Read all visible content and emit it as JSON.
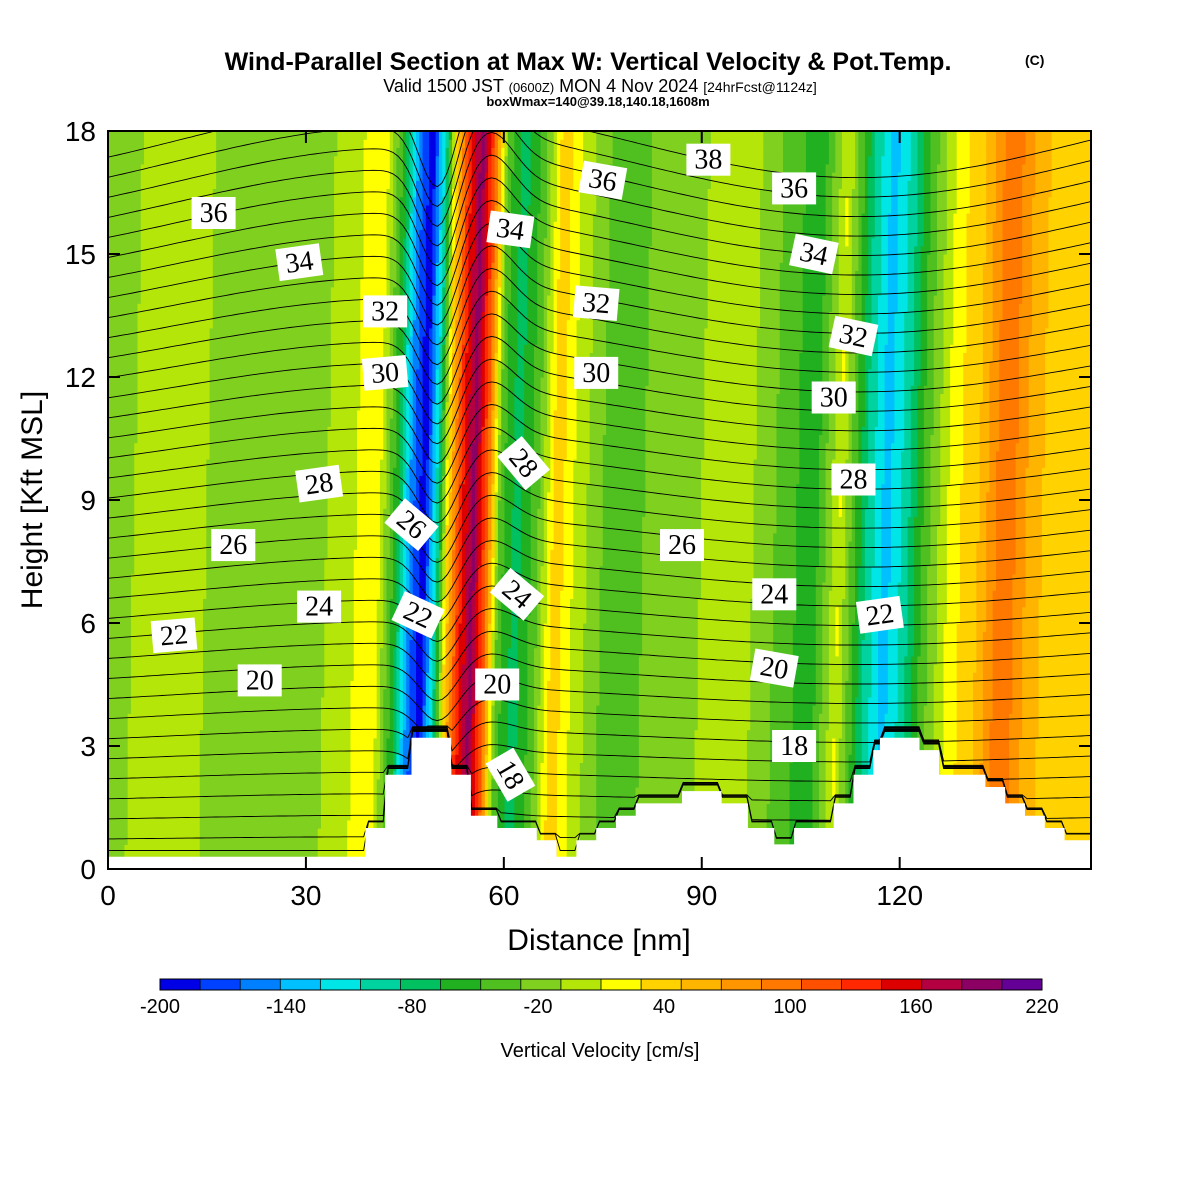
{
  "title": {
    "main": "Wind-Parallel Section at Max W: Vertical Velocity & Pot.Temp.",
    "copyright": "(C)",
    "valid_prefix": "Valid 1500 JST",
    "valid_utc": "(0600Z)",
    "valid_date": "MON 4 Nov 2024",
    "forecast": "[24hrFcst@1124z]",
    "box_info": "boxWmax=140@39.18,140.18,1608m"
  },
  "chart_data": {
    "type": "heatmap",
    "xlabel": "Distance [nm]",
    "ylabel": "Height [Kft MSL]",
    "xlim": [
      0,
      149
    ],
    "ylim": [
      0,
      18
    ],
    "xticks": [
      0,
      30,
      60,
      90,
      120
    ],
    "yticks": [
      0,
      3,
      6,
      9,
      12,
      15,
      18
    ],
    "colorbar": {
      "label": "Vertical Velocity [cm/s]",
      "levels": [
        -200,
        -180,
        -160,
        -140,
        -120,
        -100,
        -80,
        -60,
        -40,
        -20,
        0,
        20,
        40,
        60,
        80,
        100,
        120,
        140,
        160,
        180,
        200,
        220
      ],
      "tick_labels": [
        "-200",
        "-140",
        "-80",
        "-20",
        "40",
        "100",
        "160",
        "220"
      ],
      "colors": [
        "#0000e6",
        "#0040ff",
        "#0080ff",
        "#00c0ff",
        "#00e6e6",
        "#00d2a0",
        "#00c060",
        "#20b020",
        "#50c020",
        "#80d020",
        "#b4e60a",
        "#ffff00",
        "#ffd200",
        "#ffb400",
        "#ff9600",
        "#ff7800",
        "#ff5000",
        "#ff2800",
        "#dc0000",
        "#b40040",
        "#8c0064",
        "#640096"
      ]
    },
    "vertical_velocity_columns": [
      {
        "x": 0,
        "w": -10
      },
      {
        "x": 8,
        "w": 10
      },
      {
        "x": 15,
        "w": 0
      },
      {
        "x": 24,
        "w": -12
      },
      {
        "x": 32,
        "w": -6
      },
      {
        "x": 37,
        "w": 18
      },
      {
        "x": 41,
        "w": 30
      },
      {
        "x": 44,
        "w": -60
      },
      {
        "x": 46,
        "w": -150
      },
      {
        "x": 48,
        "w": -195
      },
      {
        "x": 50,
        "w": -90
      },
      {
        "x": 51.5,
        "w": 40
      },
      {
        "x": 53.5,
        "w": 150
      },
      {
        "x": 55.5,
        "w": 210
      },
      {
        "x": 57.5,
        "w": 120
      },
      {
        "x": 59.5,
        "w": -30
      },
      {
        "x": 62,
        "w": -70
      },
      {
        "x": 65,
        "w": -30
      },
      {
        "x": 68,
        "w": 55
      },
      {
        "x": 71,
        "w": 15
      },
      {
        "x": 75,
        "w": -20
      },
      {
        "x": 79,
        "w": -30
      },
      {
        "x": 84,
        "w": -8
      },
      {
        "x": 90,
        "w": 0
      },
      {
        "x": 96,
        "w": 12
      },
      {
        "x": 102,
        "w": -25
      },
      {
        "x": 107,
        "w": -55
      },
      {
        "x": 111,
        "w": 22
      },
      {
        "x": 115,
        "w": -80
      },
      {
        "x": 118,
        "w": -130
      },
      {
        "x": 121,
        "w": -90
      },
      {
        "x": 124,
        "w": -30
      },
      {
        "x": 128,
        "w": 30
      },
      {
        "x": 132,
        "w": 60
      },
      {
        "x": 136,
        "w": 120
      },
      {
        "x": 140,
        "w": 70
      },
      {
        "x": 145,
        "w": 40
      },
      {
        "x": 149,
        "w": 55
      }
    ],
    "terrain": [
      {
        "x": 0,
        "h": 0.3
      },
      {
        "x": 39,
        "h": 0.3
      },
      {
        "x": 39,
        "h": 1.0
      },
      {
        "x": 42,
        "h": 1.0
      },
      {
        "x": 42,
        "h": 2.3
      },
      {
        "x": 46,
        "h": 2.3
      },
      {
        "x": 46,
        "h": 3.2
      },
      {
        "x": 52,
        "h": 3.2
      },
      {
        "x": 52,
        "h": 2.3
      },
      {
        "x": 55,
        "h": 2.3
      },
      {
        "x": 55,
        "h": 1.3
      },
      {
        "x": 59,
        "h": 1.3
      },
      {
        "x": 59,
        "h": 1.0
      },
      {
        "x": 65,
        "h": 1.0
      },
      {
        "x": 65,
        "h": 0.7
      },
      {
        "x": 68,
        "h": 0.7
      },
      {
        "x": 68,
        "h": 0.3
      },
      {
        "x": 71,
        "h": 0.3
      },
      {
        "x": 71,
        "h": 0.7
      },
      {
        "x": 74,
        "h": 0.7
      },
      {
        "x": 74,
        "h": 1.0
      },
      {
        "x": 77,
        "h": 1.0
      },
      {
        "x": 77,
        "h": 1.3
      },
      {
        "x": 80,
        "h": 1.3
      },
      {
        "x": 80,
        "h": 1.6
      },
      {
        "x": 87,
        "h": 1.6
      },
      {
        "x": 87,
        "h": 1.9
      },
      {
        "x": 93,
        "h": 1.9
      },
      {
        "x": 93,
        "h": 1.6
      },
      {
        "x": 97,
        "h": 1.6
      },
      {
        "x": 97,
        "h": 1.0
      },
      {
        "x": 101,
        "h": 1.0
      },
      {
        "x": 101,
        "h": 0.6
      },
      {
        "x": 104,
        "h": 0.6
      },
      {
        "x": 104,
        "h": 1.0
      },
      {
        "x": 110,
        "h": 1.0
      },
      {
        "x": 110,
        "h": 1.6
      },
      {
        "x": 113,
        "h": 1.6
      },
      {
        "x": 113,
        "h": 2.3
      },
      {
        "x": 116,
        "h": 2.3
      },
      {
        "x": 116,
        "h": 2.9
      },
      {
        "x": 117,
        "h": 2.9
      },
      {
        "x": 117,
        "h": 3.2
      },
      {
        "x": 123,
        "h": 3.2
      },
      {
        "x": 123,
        "h": 2.9
      },
      {
        "x": 126,
        "h": 2.9
      },
      {
        "x": 126,
        "h": 2.3
      },
      {
        "x": 133,
        "h": 2.3
      },
      {
        "x": 133,
        "h": 2.0
      },
      {
        "x": 136,
        "h": 2.0
      },
      {
        "x": 136,
        "h": 1.6
      },
      {
        "x": 139,
        "h": 1.6
      },
      {
        "x": 139,
        "h": 1.3
      },
      {
        "x": 142,
        "h": 1.3
      },
      {
        "x": 142,
        "h": 1.0
      },
      {
        "x": 145,
        "h": 1.0
      },
      {
        "x": 145,
        "h": 0.7
      },
      {
        "x": 149,
        "h": 0.7
      }
    ],
    "potential_temperature_labels": [
      {
        "text": "36",
        "x": 16,
        "y": 16.0,
        "rot": 0
      },
      {
        "text": "34",
        "x": 29,
        "y": 14.8,
        "rot": -8
      },
      {
        "text": "32",
        "x": 42,
        "y": 13.6,
        "rot": 0
      },
      {
        "text": "30",
        "x": 42,
        "y": 12.1,
        "rot": -5
      },
      {
        "text": "28",
        "x": 32,
        "y": 9.4,
        "rot": -8
      },
      {
        "text": "26",
        "x": 19,
        "y": 7.9,
        "rot": 0
      },
      {
        "text": "24",
        "x": 32,
        "y": 6.4,
        "rot": 0
      },
      {
        "text": "22",
        "x": 10,
        "y": 5.7,
        "rot": -5
      },
      {
        "text": "20",
        "x": 23,
        "y": 4.6,
        "rot": 0
      },
      {
        "text": "26",
        "x": 46,
        "y": 8.4,
        "rot": 40
      },
      {
        "text": "22",
        "x": 47,
        "y": 6.2,
        "rot": 25
      },
      {
        "text": "34",
        "x": 61,
        "y": 15.6,
        "rot": 8
      },
      {
        "text": "28",
        "x": 63,
        "y": 9.9,
        "rot": 50
      },
      {
        "text": "24",
        "x": 62,
        "y": 6.7,
        "rot": 40
      },
      {
        "text": "20",
        "x": 59,
        "y": 4.5,
        "rot": 0
      },
      {
        "text": "18",
        "x": 61,
        "y": 2.3,
        "rot": 60
      },
      {
        "text": "36",
        "x": 75,
        "y": 16.8,
        "rot": 10
      },
      {
        "text": "32",
        "x": 74,
        "y": 13.8,
        "rot": 5
      },
      {
        "text": "30",
        "x": 74,
        "y": 12.1,
        "rot": 0
      },
      {
        "text": "38",
        "x": 91,
        "y": 17.3,
        "rot": 0
      },
      {
        "text": "26",
        "x": 87,
        "y": 7.9,
        "rot": 0
      },
      {
        "text": "36",
        "x": 104,
        "y": 16.6,
        "rot": 0
      },
      {
        "text": "34",
        "x": 107,
        "y": 15.0,
        "rot": 12
      },
      {
        "text": "24",
        "x": 101,
        "y": 6.7,
        "rot": 0
      },
      {
        "text": "20",
        "x": 101,
        "y": 4.9,
        "rot": 10
      },
      {
        "text": "18",
        "x": 104,
        "y": 3.0,
        "rot": 0
      },
      {
        "text": "32",
        "x": 113,
        "y": 13.0,
        "rot": 12
      },
      {
        "text": "30",
        "x": 110,
        "y": 11.5,
        "rot": 0
      },
      {
        "text": "28",
        "x": 113,
        "y": 9.5,
        "rot": 0
      },
      {
        "text": "22",
        "x": 117,
        "y": 6.2,
        "rot": -8
      }
    ]
  }
}
